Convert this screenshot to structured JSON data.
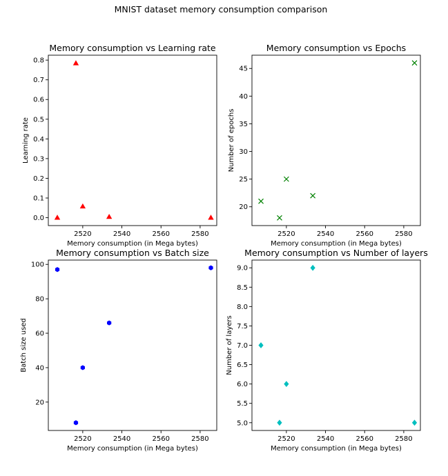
{
  "figure": {
    "suptitle": "MNIST dataset memory consumption comparison"
  },
  "chart_data": [
    {
      "type": "scatter",
      "title": "Memory consumption vs Learning rate",
      "xlabel": "Memory consumption (in Mega bytes)",
      "ylabel": "Learning rate",
      "marker": "triangle",
      "color": "#ff0000",
      "x": [
        2507,
        2516.5,
        2520,
        2533.5,
        2585.5
      ],
      "y": [
        0.001,
        0.785,
        0.058,
        0.005,
        0.001
      ],
      "xlim": [
        2502.4,
        2588.5
      ],
      "ylim": [
        -0.04,
        0.825
      ],
      "xticks": [
        2520,
        2540,
        2560,
        2580
      ],
      "xtick_labels": [
        "2520",
        "2540",
        "2560",
        "2580"
      ],
      "yticks": [
        0.0,
        0.1,
        0.2,
        0.3,
        0.4,
        0.5,
        0.6,
        0.7,
        0.8
      ],
      "ytick_labels": [
        "0.0",
        "0.1",
        "0.2",
        "0.3",
        "0.4",
        "0.5",
        "0.6",
        "0.7",
        "0.8"
      ]
    },
    {
      "type": "scatter",
      "title": "Memory consumption vs Epochs",
      "xlabel": "Memory consumption (in Mega bytes)",
      "ylabel": "Number of epochs",
      "marker": "x",
      "color": "#008000",
      "x": [
        2507,
        2516.5,
        2520,
        2533.5,
        2585.5
      ],
      "y": [
        21,
        18,
        25,
        22,
        46
      ],
      "xlim": [
        2502.4,
        2588.5
      ],
      "ylim": [
        16.6,
        47.4
      ],
      "xticks": [
        2520,
        2540,
        2560,
        2580
      ],
      "xtick_labels": [
        "2520",
        "2540",
        "2560",
        "2580"
      ],
      "yticks": [
        20,
        25,
        30,
        35,
        40,
        45
      ],
      "ytick_labels": [
        "20",
        "25",
        "30",
        "35",
        "40",
        "45"
      ]
    },
    {
      "type": "scatter",
      "title": "Memory consumption vs Batch size",
      "xlabel": "Memory consumption (in Mega bytes)",
      "ylabel": "Batch size used",
      "marker": "hexagon",
      "color": "#0000ff",
      "x": [
        2507,
        2516.5,
        2520,
        2533.5,
        2585.5
      ],
      "y": [
        97,
        8,
        40,
        66,
        98
      ],
      "xlim": [
        2502.4,
        2588.5
      ],
      "ylim": [
        3.5,
        102.5
      ],
      "xticks": [
        2520,
        2540,
        2560,
        2580
      ],
      "xtick_labels": [
        "2520",
        "2540",
        "2560",
        "2580"
      ],
      "yticks": [
        20,
        40,
        60,
        80,
        100
      ],
      "ytick_labels": [
        "20",
        "40",
        "60",
        "80",
        "100"
      ]
    },
    {
      "type": "scatter",
      "title": "Memory consumption vs Number of layers",
      "xlabel": "Memory consumption (in Mega bytes)",
      "ylabel": "Number of layers",
      "marker": "diamond",
      "color": "#00bfbf",
      "x": [
        2507,
        2516.5,
        2520,
        2533.5,
        2585.5
      ],
      "y": [
        7,
        5,
        6,
        9,
        5
      ],
      "xlim": [
        2502.4,
        2588.5
      ],
      "ylim": [
        4.8,
        9.2
      ],
      "xticks": [
        2520,
        2540,
        2560,
        2580
      ],
      "xtick_labels": [
        "2520",
        "2540",
        "2560",
        "2580"
      ],
      "yticks": [
        5.0,
        5.5,
        6.0,
        6.5,
        7.0,
        7.5,
        8.0,
        8.5,
        9.0
      ],
      "ytick_labels": [
        "5.0",
        "5.5",
        "6.0",
        "6.5",
        "7.0",
        "7.5",
        "8.0",
        "8.5",
        "9.0"
      ]
    }
  ]
}
